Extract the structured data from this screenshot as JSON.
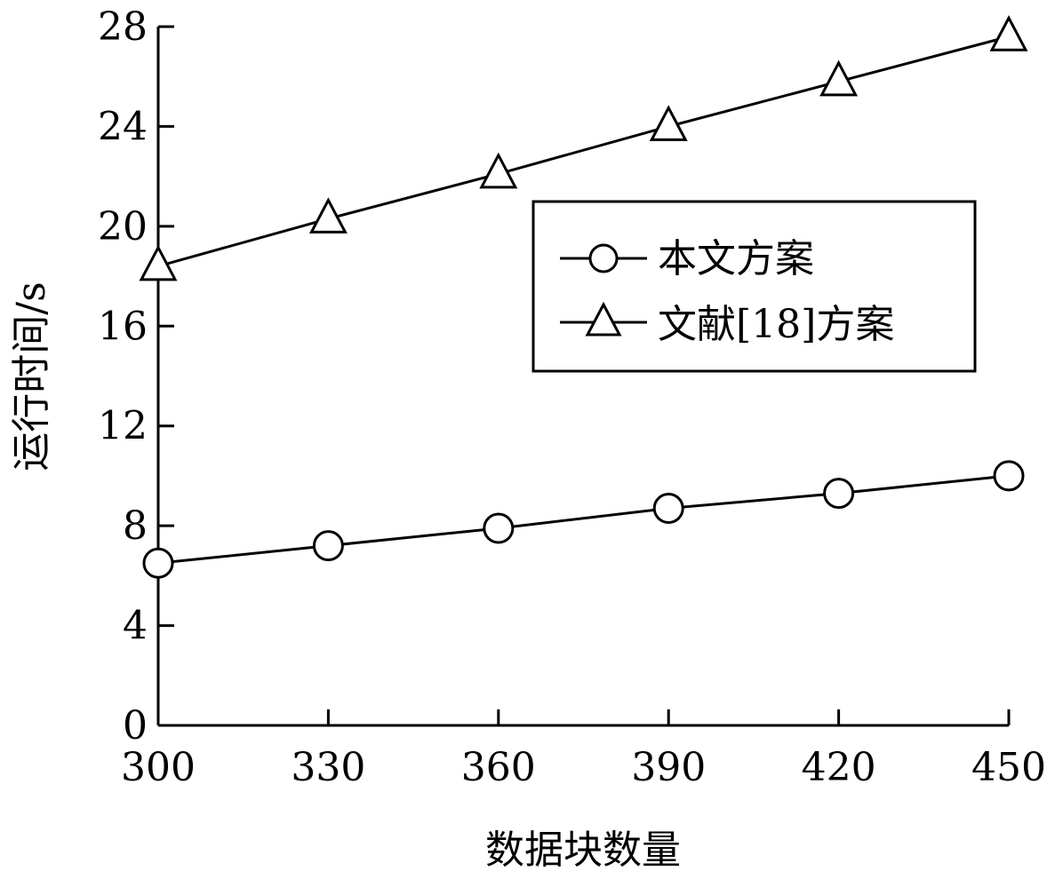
{
  "chart_data": {
    "type": "line",
    "x": [
      300,
      330,
      360,
      390,
      420,
      450
    ],
    "xticks": [
      "300",
      "330",
      "360",
      "390",
      "420",
      "450"
    ],
    "yticks": [
      "0",
      "4",
      "8",
      "12",
      "16",
      "20",
      "24",
      "28"
    ],
    "xlim": [
      300,
      450
    ],
    "ylim": [
      0,
      28
    ],
    "xlabel": "数据块数量",
    "ylabel": "运行时间/s",
    "grid": false,
    "legend_position": "upper-right",
    "series": [
      {
        "name": "本文方案",
        "marker": "circle",
        "values": [
          6.5,
          7.2,
          7.9,
          8.7,
          9.3,
          10.0
        ]
      },
      {
        "name": "文献[18]方案",
        "marker": "triangle",
        "values": [
          18.4,
          20.3,
          22.1,
          24.0,
          25.8,
          27.6
        ]
      }
    ],
    "colors": {
      "line": "#000000",
      "background": "#ffffff"
    }
  }
}
